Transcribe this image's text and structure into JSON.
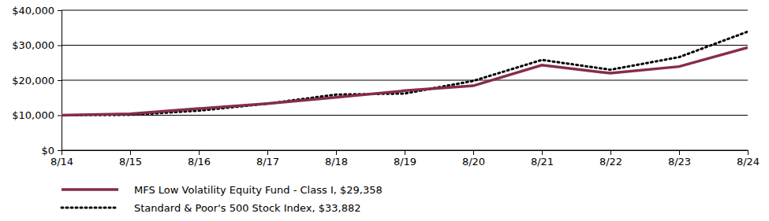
{
  "chart_data": {
    "type": "line",
    "categories": [
      "8/14",
      "8/15",
      "8/16",
      "8/17",
      "8/18",
      "8/19",
      "8/20",
      "8/21",
      "8/22",
      "8/23",
      "8/24"
    ],
    "series": [
      {
        "name": "MFS Low Volatility Equity Fund - Class I, $29,358",
        "color": "#862d47",
        "line_style": "solid",
        "values": [
          10000,
          10400,
          11900,
          13300,
          15100,
          17000,
          18400,
          24300,
          22000,
          23900,
          29358
        ]
      },
      {
        "name": "Standard & Poor's 500 Stock Index, $33,882",
        "color": "#000000",
        "line_style": "dotted",
        "values": [
          10000,
          10100,
          11300,
          13300,
          15900,
          16200,
          19800,
          25800,
          23000,
          26600,
          33882
        ]
      }
    ],
    "ylim": [
      0,
      40000
    ],
    "yticks": [
      {
        "value": 0,
        "label": "$0"
      },
      {
        "value": 10000,
        "label": "$10,000"
      },
      {
        "value": 20000,
        "label": "$20,000"
      },
      {
        "value": 30000,
        "label": "$30,000"
      },
      {
        "value": 40000,
        "label": "$40,000"
      }
    ],
    "grid": true,
    "legend": "bottom"
  }
}
